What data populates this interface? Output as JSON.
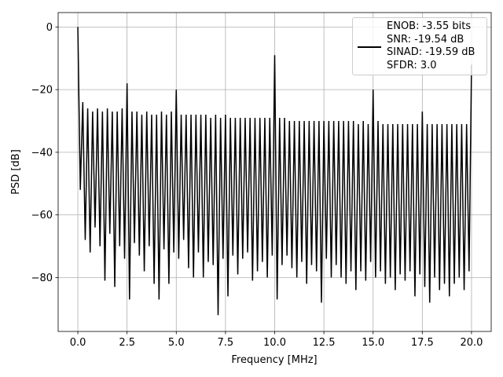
{
  "chart_data": {
    "type": "line",
    "xlabel": "Frequency [MHz]",
    "ylabel": "PSD [dB]",
    "xlim": [
      -1,
      21
    ],
    "ylim": [
      -97.2,
      4.6
    ],
    "xticks": [
      {
        "value": 0,
        "label": "0.0"
      },
      2.5,
      {
        "value": 5,
        "label": "5.0"
      },
      7.5,
      {
        "value": 10,
        "label": "10.0"
      },
      12.5,
      {
        "value": 15,
        "label": "15.0"
      },
      17.5,
      {
        "value": 20,
        "label": "20.0"
      }
    ],
    "yticks": [
      0,
      {
        "value": -20,
        "label": "−20"
      },
      {
        "value": -40,
        "label": "−40"
      },
      {
        "value": -60,
        "label": "−60"
      },
      {
        "value": -80,
        "label": "−80"
      }
    ],
    "grid": true,
    "legend": "upper right",
    "x": [
      0,
      0.125,
      0.25,
      0.375,
      0.5,
      0.625,
      0.75,
      0.875,
      1,
      1.125,
      1.25,
      1.375,
      1.5,
      1.625,
      1.75,
      1.875,
      2,
      2.125,
      2.25,
      2.375,
      2.5,
      2.625,
      2.75,
      2.875,
      3,
      3.125,
      3.25,
      3.375,
      3.5,
      3.625,
      3.75,
      3.875,
      4,
      4.125,
      4.25,
      4.375,
      4.5,
      4.625,
      4.75,
      4.875,
      5,
      5.125,
      5.25,
      5.375,
      5.5,
      5.625,
      5.75,
      5.875,
      6,
      6.125,
      6.25,
      6.375,
      6.5,
      6.625,
      6.75,
      6.875,
      7,
      7.125,
      7.25,
      7.375,
      7.5,
      7.625,
      7.75,
      7.875,
      8,
      8.125,
      8.25,
      8.375,
      8.5,
      8.625,
      8.75,
      8.875,
      9,
      9.125,
      9.25,
      9.375,
      9.5,
      9.625,
      9.75,
      9.875,
      10,
      10.125,
      10.25,
      10.375,
      10.5,
      10.625,
      10.75,
      10.875,
      11,
      11.125,
      11.25,
      11.375,
      11.5,
      11.625,
      11.75,
      11.875,
      12,
      12.125,
      12.25,
      12.375,
      12.5,
      12.625,
      12.75,
      12.875,
      13,
      13.125,
      13.25,
      13.375,
      13.5,
      13.625,
      13.75,
      13.875,
      14,
      14.125,
      14.25,
      14.375,
      14.5,
      14.625,
      14.75,
      14.875,
      15,
      15.125,
      15.25,
      15.375,
      15.5,
      15.625,
      15.75,
      15.875,
      16,
      16.125,
      16.25,
      16.375,
      16.5,
      16.625,
      16.75,
      16.875,
      17,
      17.125,
      17.25,
      17.375,
      17.5,
      17.625,
      17.75,
      17.875,
      18,
      18.125,
      18.25,
      18.375,
      18.5,
      18.625,
      18.75,
      18.875,
      19,
      19.125,
      19.25,
      19.375,
      19.5,
      19.625,
      19.75,
      19.875,
      20
    ],
    "series": [
      {
        "name": "ENOB: -3.55 bits\nSNR: -19.54 dB\nSINAD: -19.59 dB\nSFDR: 3.0",
        "color": "#000000",
        "values": [
          0,
          -52,
          -24,
          -68,
          -26,
          -72,
          -27,
          -64,
          -26,
          -70,
          -27,
          -81,
          -26,
          -66,
          -27,
          -83,
          -27,
          -70,
          -26,
          -74,
          -18,
          -87,
          -27,
          -69,
          -27,
          -73,
          -28,
          -78,
          -27,
          -70,
          -28,
          -82,
          -28,
          -87,
          -27,
          -71,
          -28,
          -82,
          -27,
          -72,
          -20,
          -74,
          -28,
          -68,
          -28,
          -77,
          -28,
          -80,
          -28,
          -72,
          -28,
          -80,
          -28,
          -75,
          -29,
          -76,
          -28,
          -92,
          -29,
          -74,
          -28,
          -86,
          -29,
          -73,
          -29,
          -79,
          -29,
          -74,
          -29,
          -72,
          -29,
          -81,
          -29,
          -78,
          -29,
          -75,
          -29,
          -80,
          -29,
          -73,
          -9,
          -87,
          -29,
          -76,
          -29,
          -73,
          -30,
          -77,
          -30,
          -80,
          -30,
          -75,
          -30,
          -82,
          -30,
          -76,
          -30,
          -78,
          -30,
          -88,
          -30,
          -74,
          -30,
          -80,
          -30,
          -76,
          -30,
          -80,
          -30,
          -82,
          -30,
          -78,
          -30,
          -84,
          -31,
          -78,
          -30,
          -81,
          -31,
          -75,
          -20,
          -80,
          -30,
          -78,
          -31,
          -82,
          -31,
          -80,
          -31,
          -84,
          -31,
          -79,
          -31,
          -81,
          -31,
          -78,
          -31,
          -86,
          -31,
          -79,
          -27,
          -83,
          -31,
          -88,
          -31,
          -80,
          -31,
          -84,
          -31,
          -82,
          -31,
          -86,
          -31,
          -82,
          -31,
          -80,
          -31,
          -84,
          -31,
          -78,
          -12
        ]
      }
    ]
  }
}
